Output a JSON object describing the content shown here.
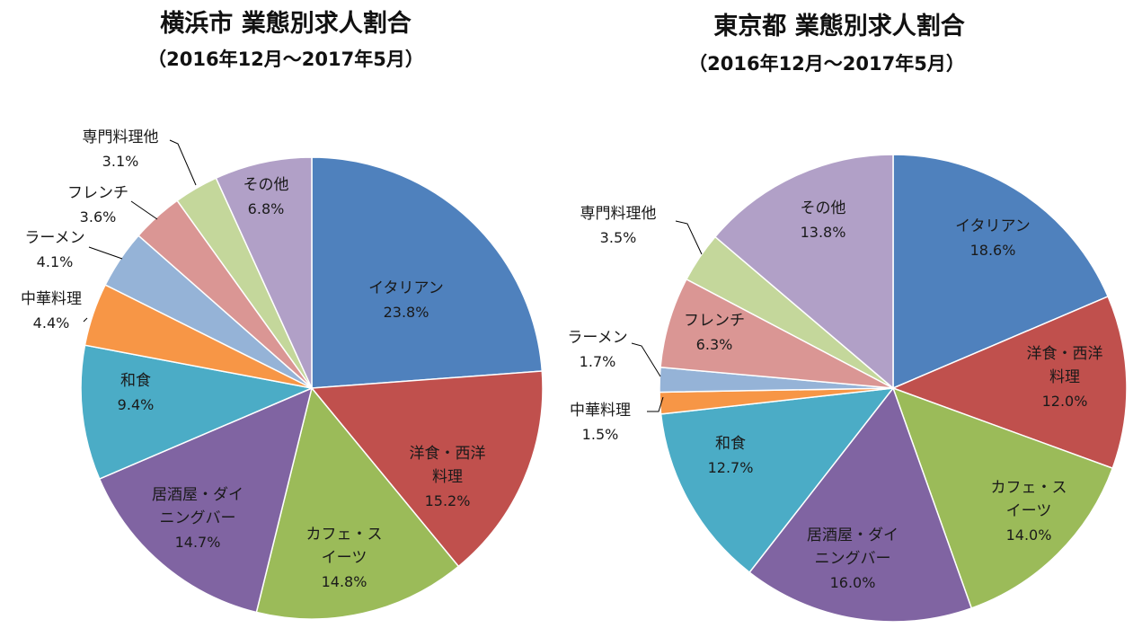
{
  "chart_data": [
    {
      "type": "pie",
      "title": "横浜市  業態別求人割合",
      "subtitle": "（2016年12月～2017年5月）",
      "start_angle": "12 o'clock, clockwise",
      "slices": [
        {
          "label": "イタリアン",
          "value": 23.8,
          "value_label": "23.8%",
          "color": "#4f81bd"
        },
        {
          "label": "洋食・西洋料理",
          "label_lines": [
            "洋食・西洋",
            "料理"
          ],
          "value": 15.2,
          "value_label": "15.2%",
          "color": "#c0504d"
        },
        {
          "label": "カフェ・スイーツ",
          "label_lines": [
            "カフェ・ス",
            "イーツ"
          ],
          "value": 14.8,
          "value_label": "14.8%",
          "color": "#9bbb59"
        },
        {
          "label": "居酒屋・ダイニングバー",
          "label_lines": [
            "居酒屋・ダイ",
            "ニングバー"
          ],
          "value": 14.7,
          "value_label": "14.7%",
          "color": "#8064a2"
        },
        {
          "label": "和食",
          "value": 9.4,
          "value_label": "9.4%",
          "color": "#4bacc6"
        },
        {
          "label": "中華料理",
          "value": 4.4,
          "value_label": "4.4%",
          "color": "#f79646"
        },
        {
          "label": "ラーメン",
          "value": 4.1,
          "value_label": "4.1%",
          "color": "#95b3d7"
        },
        {
          "label": "フレンチ",
          "value": 3.6,
          "value_label": "3.6%",
          "color": "#da9694"
        },
        {
          "label": "専門料理他",
          "value": 3.1,
          "value_label": "3.1%",
          "color": "#c4d79b"
        },
        {
          "label": "その他",
          "value": 6.8,
          "value_label": "6.8%",
          "color": "#b1a0c7"
        }
      ]
    },
    {
      "type": "pie",
      "title": "東京都  業態別求人割合",
      "subtitle": "（2016年12月～2017年5月）",
      "start_angle": "12 o'clock, clockwise",
      "slices": [
        {
          "label": "イタリアン",
          "value": 18.6,
          "value_label": "18.6%",
          "color": "#4f81bd"
        },
        {
          "label": "洋食・西洋料理",
          "label_lines": [
            "洋食・西洋",
            "料理"
          ],
          "value": 12.0,
          "value_label": "12.0%",
          "color": "#c0504d"
        },
        {
          "label": "カフェ・スイーツ",
          "label_lines": [
            "カフェ・ス",
            "イーツ"
          ],
          "value": 14.0,
          "value_label": "14.0%",
          "color": "#9bbb59"
        },
        {
          "label": "居酒屋・ダイニングバー",
          "label_lines": [
            "居酒屋・ダイ",
            "ニングバー"
          ],
          "value": 16.0,
          "value_label": "16.0%",
          "color": "#8064a2"
        },
        {
          "label": "和食",
          "value": 12.7,
          "value_label": "12.7%",
          "color": "#4bacc6"
        },
        {
          "label": "中華料理",
          "value": 1.5,
          "value_label": "1.5%",
          "color": "#f79646"
        },
        {
          "label": "ラーメン",
          "value": 1.7,
          "value_label": "1.7%",
          "color": "#95b3d7"
        },
        {
          "label": "フレンチ",
          "value": 6.3,
          "value_label": "6.3%",
          "color": "#da9694"
        },
        {
          "label": "専門料理他",
          "value": 3.5,
          "value_label": "3.5%",
          "color": "#c4d79b"
        },
        {
          "label": "その他",
          "value": 13.8,
          "value_label": "13.8%",
          "color": "#b1a0c7"
        }
      ]
    }
  ]
}
